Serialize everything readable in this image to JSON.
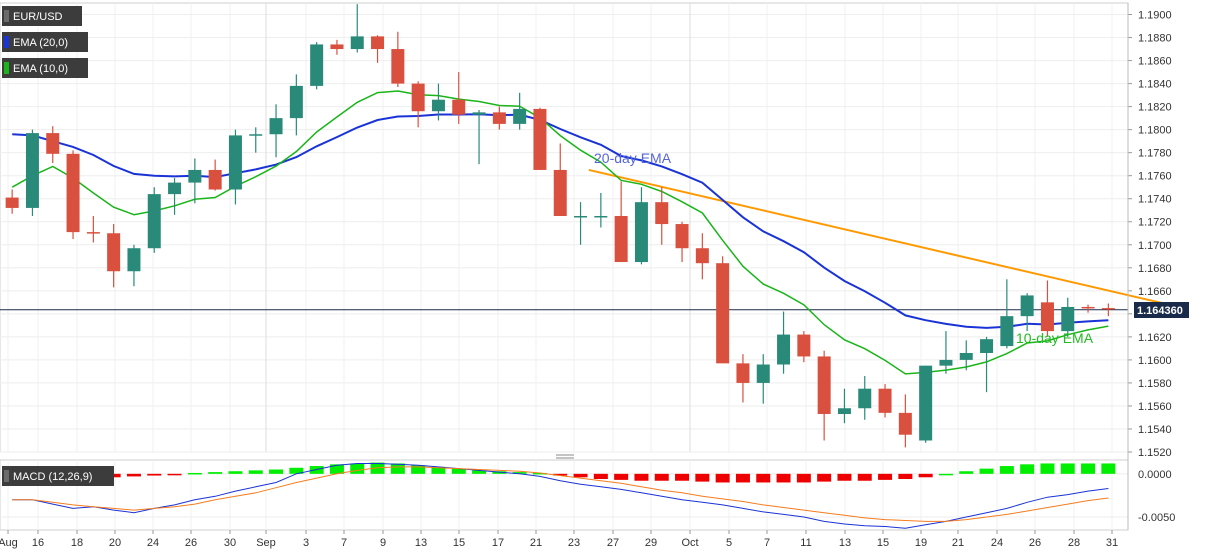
{
  "chart_data": [
    {
      "type": "candlestick",
      "symbol": "EUR/USD",
      "indicators": [
        {
          "name": "EMA (20,0)",
          "color": "#1a33d6"
        },
        {
          "name": "EMA (10,0)",
          "color": "#19b519"
        }
      ],
      "annotations": [
        "20-day EMA",
        "10-day EMA"
      ],
      "last_price": "1.164360",
      "ylim": [
        1.152,
        1.191
      ],
      "y_ticks": [
        "1.1520",
        "1.1540",
        "1.1560",
        "1.1580",
        "1.1600",
        "1.1620",
        "1.1640",
        "1.1660",
        "1.1680",
        "1.1700",
        "1.1720",
        "1.1740",
        "1.1760",
        "1.1780",
        "1.1800",
        "1.1820",
        "1.1840",
        "1.1860",
        "1.1880",
        "1.1900"
      ],
      "x_ticks": [
        "Aug",
        "16",
        "18",
        "20",
        "24",
        "26",
        "30",
        "Sep",
        "3",
        "7",
        "9",
        "13",
        "15",
        "17",
        "21",
        "23",
        "27",
        "29",
        "Oct",
        "5",
        "7",
        "11",
        "13",
        "15",
        "19",
        "21",
        "24",
        "26",
        "28",
        "31"
      ],
      "ohlc": [
        [
          1.1741,
          1.1748,
          1.1727,
          1.1732
        ],
        [
          1.1732,
          1.18,
          1.1725,
          1.1797
        ],
        [
          1.1797,
          1.1803,
          1.1771,
          1.1779
        ],
        [
          1.1779,
          1.1782,
          1.1705,
          1.1711
        ],
        [
          1.1711,
          1.1725,
          1.1702,
          1.171
        ],
        [
          1.171,
          1.1718,
          1.1663,
          1.1677
        ],
        [
          1.1677,
          1.17,
          1.1664,
          1.1697
        ],
        [
          1.1697,
          1.175,
          1.1693,
          1.1744
        ],
        [
          1.1744,
          1.1758,
          1.1726,
          1.1754
        ],
        [
          1.1754,
          1.1775,
          1.1736,
          1.1765
        ],
        [
          1.1765,
          1.1774,
          1.1747,
          1.1748
        ],
        [
          1.1748,
          1.18,
          1.1735,
          1.1795
        ],
        [
          1.1795,
          1.1802,
          1.178,
          1.1796
        ],
        [
          1.1796,
          1.1822,
          1.1776,
          1.181
        ],
        [
          1.181,
          1.1848,
          1.1795,
          1.1838
        ],
        [
          1.1838,
          1.1876,
          1.1835,
          1.1874
        ],
        [
          1.1874,
          1.1878,
          1.1865,
          1.187
        ],
        [
          1.187,
          1.1909,
          1.1867,
          1.1881
        ],
        [
          1.1881,
          1.1882,
          1.1858,
          1.187
        ],
        [
          1.187,
          1.1885,
          1.1837,
          1.184
        ],
        [
          1.184,
          1.1842,
          1.1802,
          1.1816
        ],
        [
          1.1816,
          1.184,
          1.1808,
          1.1826
        ],
        [
          1.1826,
          1.185,
          1.1805,
          1.1813
        ],
        [
          1.1813,
          1.1817,
          1.177,
          1.1815
        ],
        [
          1.1815,
          1.182,
          1.18,
          1.1805
        ],
        [
          1.1805,
          1.1832,
          1.18,
          1.1818
        ],
        [
          1.1818,
          1.1819,
          1.1765,
          1.1765
        ],
        [
          1.1765,
          1.1788,
          1.1725,
          1.1725
        ],
        [
          1.1725,
          1.1737,
          1.17,
          1.1725
        ],
        [
          1.1725,
          1.1745,
          1.1715,
          1.1725
        ],
        [
          1.1725,
          1.1755,
          1.1685,
          1.1685
        ],
        [
          1.1685,
          1.175,
          1.1683,
          1.1737
        ],
        [
          1.1737,
          1.175,
          1.17,
          1.1718
        ],
        [
          1.1718,
          1.172,
          1.1685,
          1.1697
        ],
        [
          1.1697,
          1.171,
          1.167,
          1.1684
        ],
        [
          1.1684,
          1.169,
          1.16,
          1.1597
        ],
        [
          1.1597,
          1.1605,
          1.1563,
          1.158
        ],
        [
          1.158,
          1.1605,
          1.1562,
          1.1596
        ],
        [
          1.1596,
          1.1642,
          1.1588,
          1.1622
        ],
        [
          1.1622,
          1.1625,
          1.1598,
          1.1603
        ],
        [
          1.1603,
          1.1608,
          1.153,
          1.1553
        ],
        [
          1.1553,
          1.1575,
          1.1545,
          1.1558
        ],
        [
          1.1558,
          1.1586,
          1.1548,
          1.1575
        ],
        [
          1.1575,
          1.1579,
          1.155,
          1.1554
        ],
        [
          1.1554,
          1.157,
          1.1524,
          1.1535
        ],
        [
          1.153,
          1.1595,
          1.1528,
          1.1595
        ],
        [
          1.1595,
          1.1625,
          1.1588,
          1.16
        ],
        [
          1.16,
          1.1617,
          1.1591,
          1.1606
        ],
        [
          1.1606,
          1.162,
          1.1572,
          1.1618
        ],
        [
          1.1612,
          1.167,
          1.161,
          1.1638
        ],
        [
          1.1638,
          1.1658,
          1.1625,
          1.1656
        ],
        [
          1.165,
          1.1669,
          1.162,
          1.1625
        ],
        [
          1.1625,
          1.1654,
          1.162,
          1.1646
        ],
        [
          1.1646,
          1.1648,
          1.1641,
          1.1645
        ],
        [
          1.1645,
          1.1649,
          1.1638,
          1.1644
        ]
      ],
      "macd_panel": {
        "label": "MACD (12,26,9)",
        "ylim": [
          -0.0065,
          0.0016
        ],
        "y_ticks": [
          "0.0000",
          "-0.0050"
        ],
        "histogram": [
          -0.0003,
          -0.0003,
          -0.0003,
          -0.0003,
          -0.0004,
          -0.0004,
          -0.0003,
          -0.0002,
          -0.0001,
          0.0001,
          0.0002,
          0.0003,
          0.0004,
          0.0005,
          0.0007,
          0.0009,
          0.0011,
          0.0012,
          0.0013,
          0.0012,
          0.001,
          0.0008,
          0.0006,
          0.0004,
          0.0003,
          0.0002,
          0.0001,
          -0.0002,
          -0.0004,
          -0.0006,
          -0.0007,
          -0.0008,
          -0.0008,
          -0.0008,
          -0.0009,
          -0.001,
          -0.001,
          -0.001,
          -0.001,
          -0.001,
          -0.0009,
          -0.0008,
          -0.0008,
          -0.0007,
          -0.0006,
          -0.0004,
          0,
          0.0003,
          0.0006,
          0.0009,
          0.0011,
          0.0012,
          0.0012,
          0.0012,
          0.0012
        ],
        "macd": [
          -0.003,
          -0.003,
          -0.0035,
          -0.004,
          -0.0038,
          -0.0042,
          -0.0045,
          -0.004,
          -0.0036,
          -0.003,
          -0.0026,
          -0.002,
          -0.0015,
          -0.001,
          0.0,
          0.0005,
          0.001,
          0.0012,
          0.0012,
          0.0011,
          0.001,
          0.0008,
          0.0006,
          0.0004,
          0.0002,
          0.0,
          -0.0003,
          -0.0008,
          -0.0012,
          -0.0015,
          -0.0018,
          -0.0022,
          -0.0026,
          -0.003,
          -0.0033,
          -0.0036,
          -0.004,
          -0.0044,
          -0.0047,
          -0.005,
          -0.0055,
          -0.0058,
          -0.006,
          -0.0061,
          -0.0063,
          -0.0059,
          -0.0055,
          -0.005,
          -0.0045,
          -0.004,
          -0.0033,
          -0.0027,
          -0.0024,
          -0.002,
          -0.0017
        ],
        "signal": [
          -0.003,
          -0.003,
          -0.0033,
          -0.0036,
          -0.0038,
          -0.004,
          -0.0042,
          -0.004,
          -0.0038,
          -0.0035,
          -0.003,
          -0.0026,
          -0.0022,
          -0.0016,
          -0.001,
          -0.0005,
          0.0,
          0.0004,
          0.0007,
          0.0008,
          0.0008,
          0.0007,
          0.0006,
          0.0005,
          0.0004,
          0.0003,
          0.0001,
          -0.0002,
          -0.0005,
          -0.0008,
          -0.0011,
          -0.0015,
          -0.0019,
          -0.0022,
          -0.0026,
          -0.0029,
          -0.0032,
          -0.0036,
          -0.0039,
          -0.0042,
          -0.0045,
          -0.0048,
          -0.0051,
          -0.0053,
          -0.0054,
          -0.0055,
          -0.0055,
          -0.0053,
          -0.005,
          -0.0047,
          -0.0043,
          -0.0039,
          -0.0035,
          -0.0031,
          -0.0028
        ]
      }
    }
  ],
  "colors": {
    "up": "#2a8a7a",
    "down": "#d9503f",
    "ema20": "#1a33d6",
    "ema10": "#19b519",
    "trendline": "#ff9900",
    "macd_line": "#1a33d6",
    "signal_line": "#f57c1f",
    "hist_pos": "#00ee00",
    "hist_neg": "#ee0000",
    "last_price_bg": "#1a2a4a",
    "badge_bg": "#3c3c3c"
  }
}
